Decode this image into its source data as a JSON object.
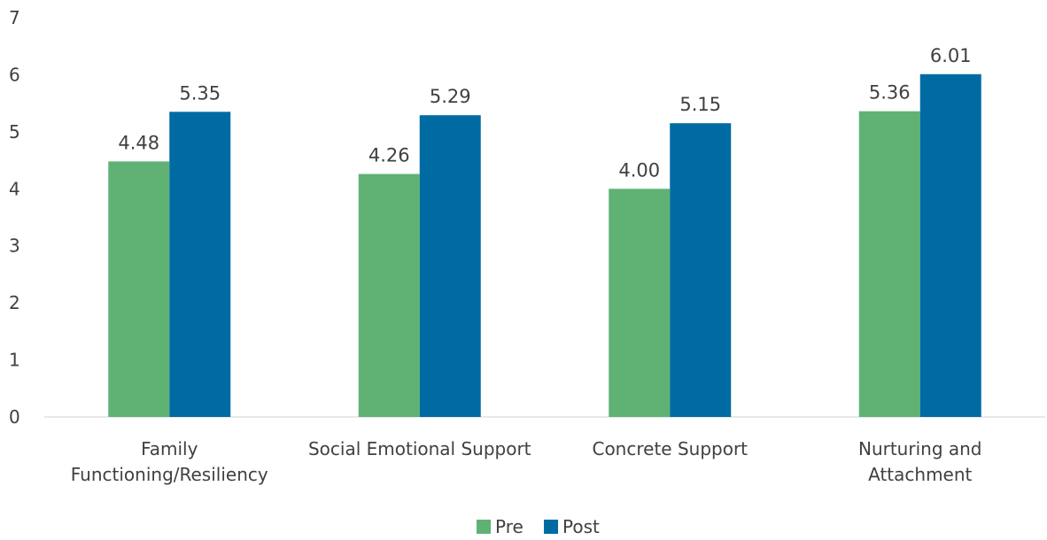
{
  "chart_data": {
    "type": "bar",
    "categories": [
      [
        "Family",
        "Functioning/Resiliency"
      ],
      [
        "Social Emotional Support"
      ],
      [
        "Concrete Support"
      ],
      [
        "Nurturing and",
        "Attachment"
      ]
    ],
    "series": [
      {
        "name": "Pre",
        "color": "#5FB274",
        "values": [
          4.48,
          4.26,
          4.0,
          5.36
        ],
        "labels": [
          "4.48",
          "4.26",
          "4.00",
          "5.36"
        ]
      },
      {
        "name": "Post",
        "color": "#006BA2",
        "values": [
          5.35,
          5.29,
          5.15,
          6.01
        ],
        "labels": [
          "5.35",
          "5.29",
          "5.15",
          "6.01"
        ]
      }
    ],
    "yticks": [
      "0",
      "1",
      "2",
      "3",
      "4",
      "5",
      "6",
      "7"
    ],
    "ylim": [
      0,
      7
    ],
    "grid": false,
    "legend": "bottom-center"
  }
}
